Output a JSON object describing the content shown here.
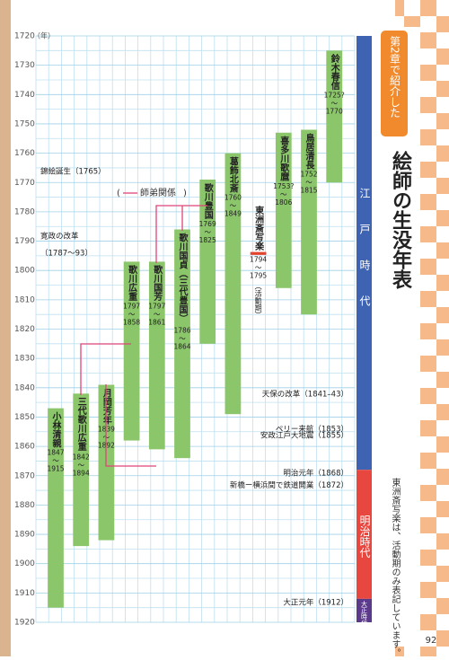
{
  "chart_data": {
    "type": "range",
    "y_unit": "（年）",
    "ylim": [
      1720,
      1920
    ],
    "yticks": [
      1720,
      1730,
      1740,
      1750,
      1760,
      1770,
      1780,
      1790,
      1800,
      1810,
      1820,
      1830,
      1840,
      1850,
      1860,
      1870,
      1880,
      1890,
      1900,
      1910,
      1920
    ],
    "grid": true,
    "categories": [
      "小林清親",
      "三代歌川広重",
      "月岡芳年",
      "歌川広重",
      "歌川国芳",
      "歌川国貞（三代豊国）",
      "歌川豊国",
      "葛飾北斎",
      "東洲斎写楽",
      "喜多川歌麿",
      "鳥居清長",
      "鈴木春信"
    ],
    "start": [
      1847,
      1842,
      1839,
      1797,
      1797,
      1786,
      1769,
      1760,
      1794,
      1753,
      1752,
      1725
    ],
    "start_value_labels": [
      "1847",
      "1842",
      "1839",
      "1797",
      "1797",
      "1786",
      "1769",
      "1760",
      "1794",
      "1753?",
      "1752",
      "1725?"
    ],
    "end": [
      1915,
      1894,
      1892,
      1858,
      1861,
      1864,
      1825,
      1849,
      1795,
      1806,
      1815,
      1770
    ],
    "colors": [
      "#8cc66b",
      "#8cc66b",
      "#8cc66b",
      "#8cc66b",
      "#8cc66b",
      "#8cc66b",
      "#8cc66b",
      "#8cc66b",
      "#e2452f",
      "#8cc66b",
      "#8cc66b",
      "#8cc66b"
    ],
    "notes": [
      null,
      null,
      null,
      null,
      null,
      null,
      null,
      null,
      "（活動期）",
      null,
      null,
      null
    ],
    "range_separator": "～",
    "link_color": "#e0457a",
    "legend": "師弟関係",
    "events": [
      {
        "lines": [
          "錦絵誕生（1765）"
        ],
        "year": 1765,
        "align": "left"
      },
      {
        "lines": [
          "寛政の改革",
          "（1787～93）"
        ],
        "year": 1787,
        "align": "left"
      },
      {
        "lines": [
          "天保の改革（1841–43）"
        ],
        "year": 1841,
        "align": "right"
      },
      {
        "lines": [
          "ペリー来航（1853）"
        ],
        "year": 1853,
        "align": "right"
      },
      {
        "lines": [
          "安政江戸大地震（1855）"
        ],
        "year": 1855,
        "align": "right"
      },
      {
        "lines": [
          "明治元年（1868）"
        ],
        "year": 1868,
        "align": "right"
      },
      {
        "lines": [
          "新橋ー横浜間で鉄道開業（1872）"
        ],
        "year": 1872,
        "align": "right"
      },
      {
        "lines": [
          "大正元年（1912）"
        ],
        "year": 1912,
        "align": "right"
      }
    ],
    "eras": [
      {
        "name": "江戸時代",
        "color": "#3f63b3"
      },
      {
        "name": "明治時代",
        "color": "#e8473f"
      },
      {
        "name": "大正時代",
        "color": "#5b3a8c"
      }
    ],
    "era_bounds": [
      1868,
      1912
    ]
  },
  "header": {
    "tag": "第2章で紹介した",
    "title": "絵師の生没年表"
  },
  "note": "東洲斎写楽は、活動期のみ表記しています。",
  "page_number": "92"
}
